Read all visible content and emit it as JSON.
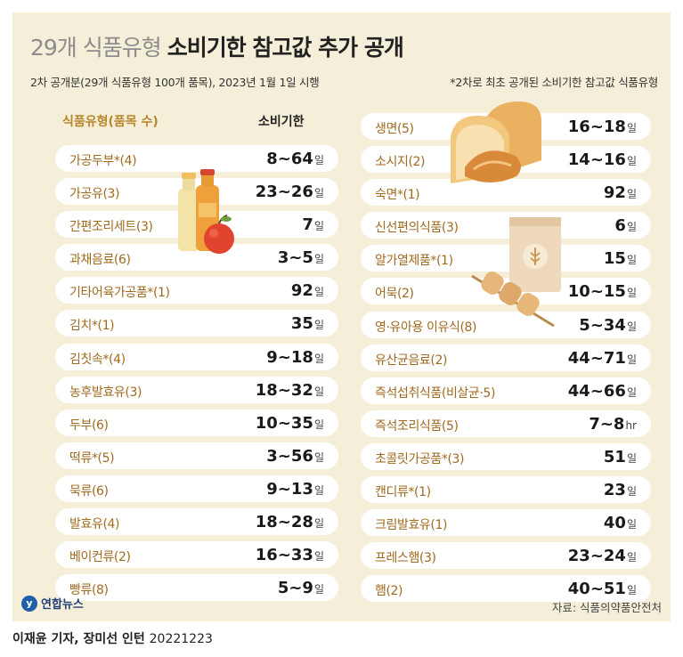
{
  "title": {
    "light": "29개 식품유형",
    "bold": "소비기한 참고값 추가 공개"
  },
  "subtitle_left": "2차 공개분(29개 식품유형 100개 품목), 2023년 1월 1일 시행",
  "subtitle_right": "*2차로 최초 공개된 소비기한 참고값 식품유형",
  "column_headers": {
    "type": "식품유형(품목 수)",
    "period": "소비기한"
  },
  "left_rows": [
    {
      "name": "가공두부*(4)",
      "value": "8~64",
      "unit": "일"
    },
    {
      "name": "가공유(3)",
      "value": "23~26",
      "unit": "일"
    },
    {
      "name": "간편조리세트(3)",
      "value": "7",
      "unit": "일"
    },
    {
      "name": "과채음료(6)",
      "value": "3~5",
      "unit": "일"
    },
    {
      "name": "기타어육가공품*(1)",
      "value": "92",
      "unit": "일"
    },
    {
      "name": "김치*(1)",
      "value": "35",
      "unit": "일"
    },
    {
      "name": "김칫속*(4)",
      "value": "9~18",
      "unit": "일"
    },
    {
      "name": "농후발효유(3)",
      "value": "18~32",
      "unit": "일"
    },
    {
      "name": "두부(6)",
      "value": "10~35",
      "unit": "일"
    },
    {
      "name": "떡류*(5)",
      "value": "3~56",
      "unit": "일"
    },
    {
      "name": "묵류(6)",
      "value": "9~13",
      "unit": "일"
    },
    {
      "name": "발효유(4)",
      "value": "18~28",
      "unit": "일"
    },
    {
      "name": "베이컨류(2)",
      "value": "16~33",
      "unit": "일"
    },
    {
      "name": "빵류(8)",
      "value": "5~9",
      "unit": "일"
    }
  ],
  "right_rows": [
    {
      "name": "생면(5)",
      "value": "16~18",
      "unit": "일"
    },
    {
      "name": "소시지(2)",
      "value": "14~16",
      "unit": "일"
    },
    {
      "name": "숙면*(1)",
      "value": "92",
      "unit": "일"
    },
    {
      "name": "신선편의식품(3)",
      "value": "6",
      "unit": "일"
    },
    {
      "name": "알가열제품*(1)",
      "value": "15",
      "unit": "일"
    },
    {
      "name": "어묵(2)",
      "value": "10~15",
      "unit": "일"
    },
    {
      "name": "영·유아용 이유식(8)",
      "value": "5~34",
      "unit": "일"
    },
    {
      "name": "유산균음료(2)",
      "value": "44~71",
      "unit": "일"
    },
    {
      "name": "즉석섭취식품(비살균·5)",
      "value": "44~66",
      "unit": "일"
    },
    {
      "name": "즉석조리식품(5)",
      "value": "7~8",
      "unit": "hr"
    },
    {
      "name": "초콜릿가공품*(3)",
      "value": "51",
      "unit": "일"
    },
    {
      "name": "캔디류*(1)",
      "value": "23",
      "unit": "일"
    },
    {
      "name": "크림발효유(1)",
      "value": "40",
      "unit": "일"
    },
    {
      "name": "프레스햄(3)",
      "value": "23~24",
      "unit": "일"
    },
    {
      "name": "햄(2)",
      "value": "40~51",
      "unit": "일"
    }
  ],
  "footer": {
    "logo_mark": "y",
    "logo_text": "연합뉴스",
    "source": "자료: 식품의약품안전처"
  },
  "credit": {
    "text": "이재윤 기자, 장미선 인턴",
    "date": "20221223"
  },
  "colors": {
    "background": "#f5efd9",
    "accent": "#b7862c",
    "label": "#a06a1e"
  }
}
